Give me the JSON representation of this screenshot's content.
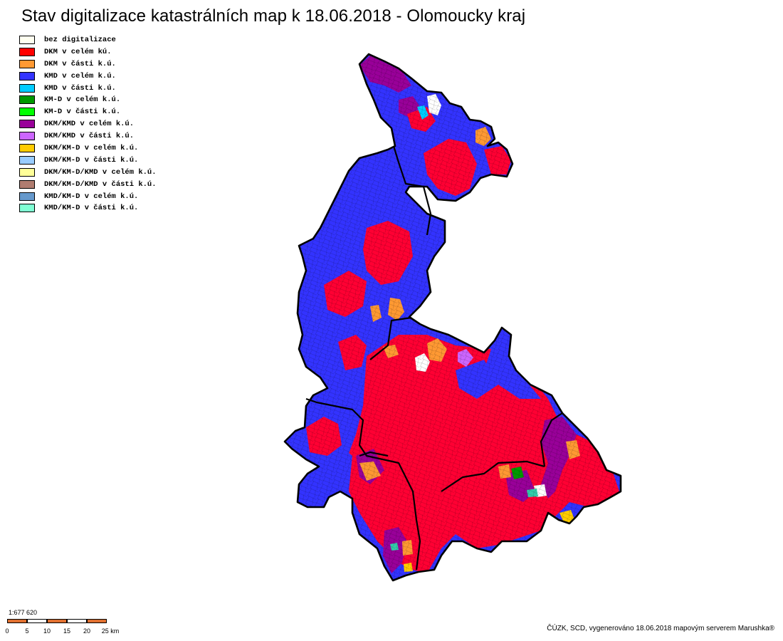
{
  "title": "Stav digitalizace katastrálních map k 18.06.2018 - Olomoucky kraj",
  "legend": [
    {
      "label": "bez digitalizace",
      "color": "#fffff0"
    },
    {
      "label": "DKM v celém kú.",
      "color": "#ff0000"
    },
    {
      "label": "DKM v části k.ú.",
      "color": "#ff9933"
    },
    {
      "label": "KMD v celém k.ú.",
      "color": "#3333ff"
    },
    {
      "label": "KMD v části k.ú.",
      "color": "#00ccff"
    },
    {
      "label": "KM-D v celém k.ú.",
      "color": "#009900"
    },
    {
      "label": "KM-D v části k.ú.",
      "color": "#00ff00"
    },
    {
      "label": "DKM/KMD v celém k.ú.",
      "color": "#990099"
    },
    {
      "label": "DKM/KMD v části k.ú.",
      "color": "#cc66ff"
    },
    {
      "label": "DKM/KM-D v celém k.ú.",
      "color": "#ffcc00"
    },
    {
      "label": "DKM/KM-D v části k.ú.",
      "color": "#99ccff"
    },
    {
      "label": "DKM/KM-D/KMD v celém k.ú.",
      "color": "#ffff99"
    },
    {
      "label": "DKM/KM-D/KMD v části k.ú.",
      "color": "#b07c70"
    },
    {
      "label": "KMD/KM-D v celém k.ú.",
      "color": "#6699cc"
    },
    {
      "label": "KMD/KM-D v části k.ú.",
      "color": "#80ffd4"
    }
  ],
  "scale": {
    "ratio": "1:677 620",
    "ticks": [
      "0",
      "5",
      "10",
      "15",
      "20",
      "25 km"
    ]
  },
  "credit": "ČÚZK, SCD, vygenerováno 18.06.2018 mapovým serverem Marushka®",
  "colors": {
    "blue": "#3333ff",
    "red": "#ff0033",
    "orange": "#ff9933",
    "purple": "#990099",
    "violet": "#cc66ff",
    "white": "#ffffff",
    "cyan": "#00ccff",
    "green": "#009900",
    "yellow": "#ffcc00",
    "teal": "#33ccaa",
    "scale_fill": "#e07030"
  }
}
